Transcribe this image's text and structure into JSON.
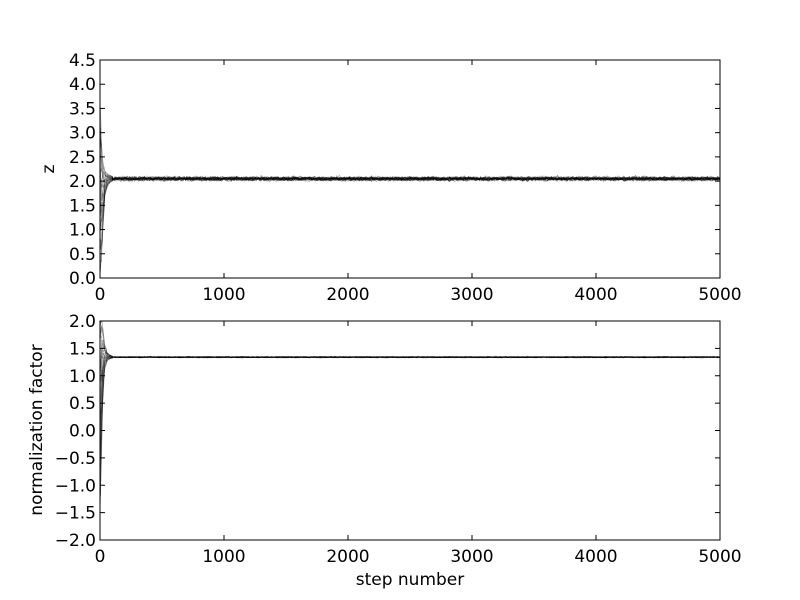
{
  "chart_data": [
    {
      "type": "line",
      "title": "",
      "xlabel": "",
      "ylabel": "z",
      "xlim": [
        0,
        5000
      ],
      "ylim": [
        0.0,
        4.5
      ],
      "xticks": [
        "0",
        "1000",
        "2000",
        "3000",
        "4000",
        "5000"
      ],
      "yticks": [
        "0.0",
        "0.5",
        "1.0",
        "1.5",
        "2.0",
        "2.5",
        "3.0",
        "3.5",
        "4.0",
        "4.5"
      ],
      "grid": false,
      "legend": "none",
      "series_color": "#000000",
      "num_walkers": 24,
      "burn_in": {
        "x": [
          0,
          5,
          10,
          20,
          30,
          40,
          60,
          80,
          100
        ],
        "y_low": [
          0.05,
          0.1,
          0.3,
          0.8,
          1.3,
          1.7,
          1.9,
          1.97,
          2.0
        ],
        "y_high": [
          3.5,
          3.3,
          2.9,
          2.5,
          2.3,
          2.2,
          2.15,
          2.12,
          2.1
        ]
      },
      "equilibrium": {
        "x_start": 100,
        "x_end": 5000,
        "mean": 2.05,
        "spread": 0.07
      }
    },
    {
      "type": "line",
      "title": "",
      "xlabel": "step number",
      "ylabel": "normalization factor",
      "xlim": [
        0,
        5000
      ],
      "ylim": [
        -2.0,
        2.0
      ],
      "xticks": [
        "0",
        "1000",
        "2000",
        "3000",
        "4000",
        "5000"
      ],
      "yticks": [
        "−2.0",
        "−1.5",
        "−1.0",
        "−0.5",
        "0.0",
        "0.5",
        "1.0",
        "1.5",
        "2.0"
      ],
      "grid": false,
      "legend": "none",
      "series_color": "#000000",
      "num_walkers": 24,
      "burn_in": {
        "x": [
          0,
          5,
          10,
          20,
          30,
          40,
          60,
          80,
          100
        ],
        "y_low": [
          -1.5,
          -1.2,
          -0.6,
          0.3,
          0.9,
          1.15,
          1.28,
          1.31,
          1.32
        ],
        "y_high": [
          2.0,
          2.0,
          2.0,
          1.9,
          1.7,
          1.55,
          1.42,
          1.38,
          1.36
        ]
      },
      "equilibrium": {
        "x_start": 100,
        "x_end": 5000,
        "mean": 1.34,
        "spread": 0.02
      }
    }
  ]
}
